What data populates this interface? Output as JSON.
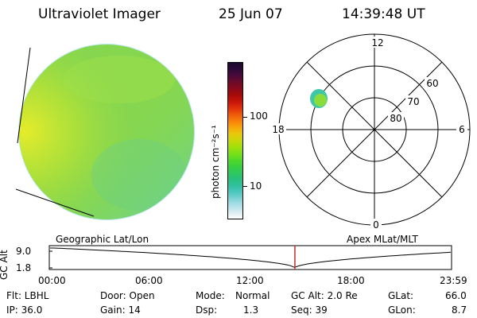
{
  "header": {
    "instrument": "Ultraviolet Imager",
    "date": "25 Jun 07",
    "time": "14:39:48 UT"
  },
  "colorbar": {
    "label": "photon cm⁻²s⁻¹",
    "ticks": [
      "100",
      "10"
    ],
    "colors": [
      "#1a0a2e",
      "#2d0a3a",
      "#4a0a3a",
      "#6e0a2a",
      "#8a0a1a",
      "#a80a0a",
      "#c8140a",
      "#e0300a",
      "#f05a0a",
      "#f8820a",
      "#f8a80a",
      "#e8c80a",
      "#c8d80a",
      "#a0e00a",
      "#78e018",
      "#50d828",
      "#38d040",
      "#2ec860",
      "#28c080",
      "#30c0a0",
      "#50c8c0",
      "#80d4d8",
      "#b0e0e8",
      "#d8ecf0",
      "#ffffff"
    ]
  },
  "polar": {
    "mlt_labels": [
      "12",
      "18",
      "6",
      "0"
    ],
    "lat_labels": [
      "60",
      "70",
      "80"
    ]
  },
  "timeline": {
    "left_label": "Geographic Lat/Lon",
    "right_label": "Apex  MLat/MLT",
    "axis_label": "GC Alt",
    "y_ticks": [
      "9.0",
      "1.8"
    ],
    "x_ticks": [
      "00:00",
      "06:00",
      "12:00",
      "18:00",
      "23:59"
    ],
    "current_fraction": 0.611
  },
  "status": {
    "row1": {
      "flt": "Flt: LBHL",
      "door": "Door: Open",
      "mode_label": "Mode:",
      "mode_value": "Normal",
      "gcalt": "GC Alt: 2.0 Re",
      "glat_label": "GLat:",
      "glat_value": "66.0"
    },
    "row2": {
      "ip": "IP: 36.0",
      "gain": "Gain: 14",
      "dsp_label": "Dsp:",
      "dsp_value": "1.3",
      "seq": "Seq: 39",
      "glon_label": "GLon:",
      "glon_value": "8.7"
    }
  }
}
